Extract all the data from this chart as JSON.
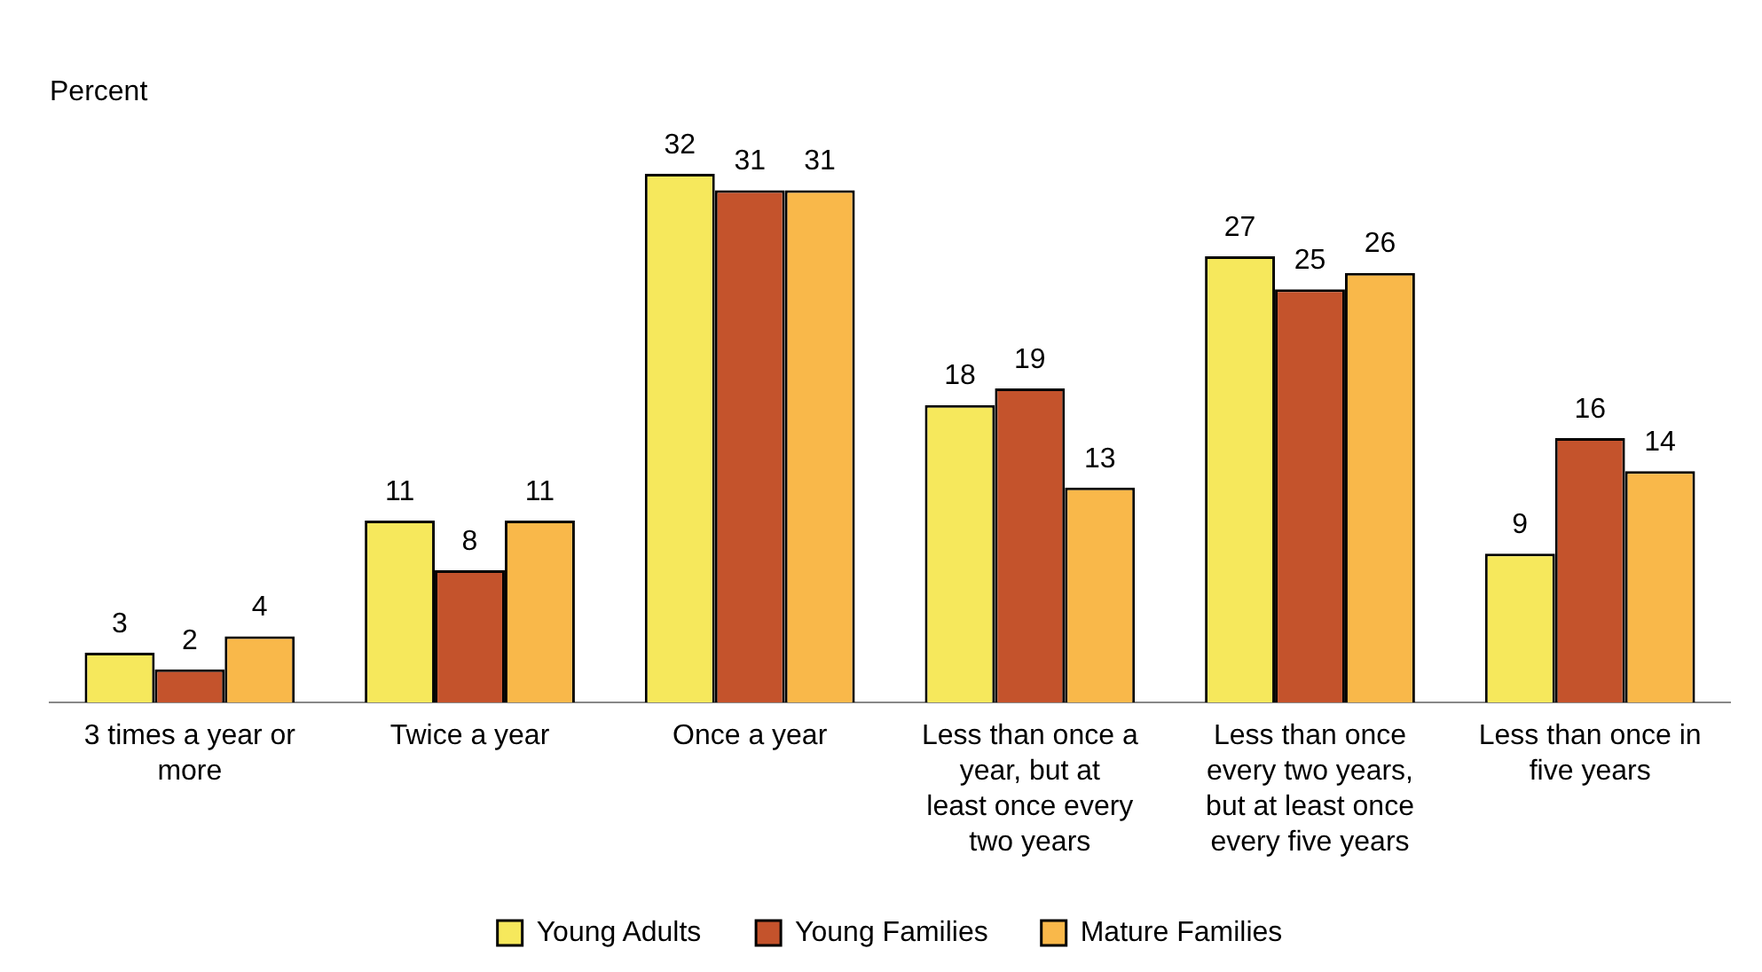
{
  "chart_data": {
    "type": "bar",
    "ylabel": "Percent",
    "categories": [
      "3 times a year or more",
      "Twice a year",
      "Once a year",
      "Less than once a year, but at least once every two years",
      "Less than once every two years, but at least once every five years",
      "Less than once in five years"
    ],
    "series": [
      {
        "name": "Young Adults",
        "color": "#f6e85c",
        "values": [
          3,
          11,
          32,
          18,
          27,
          9
        ]
      },
      {
        "name": "Young Families",
        "color": "#c4532c",
        "values": [
          2,
          8,
          31,
          19,
          25,
          16
        ]
      },
      {
        "name": "Mature Families",
        "color": "#f9b84a",
        "values": [
          4,
          11,
          31,
          13,
          26,
          14
        ]
      }
    ],
    "data_labels": true,
    "legend": "bottom",
    "grid": false
  }
}
